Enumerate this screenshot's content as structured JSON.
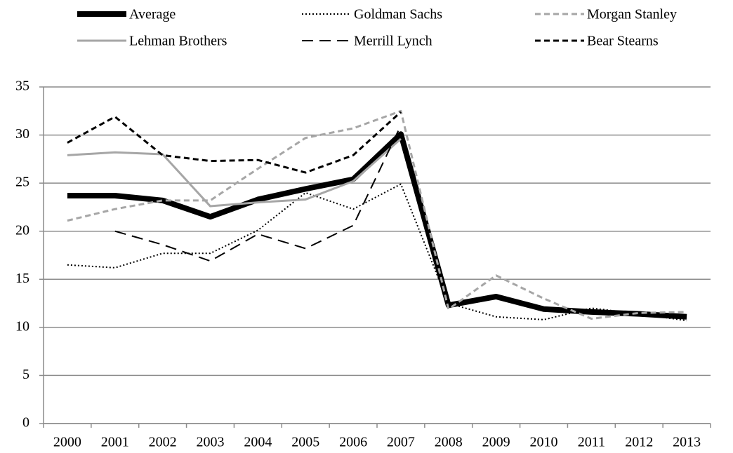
{
  "chart_data": {
    "type": "line",
    "categories": [
      "2000",
      "2001",
      "2002",
      "2003",
      "2004",
      "2005",
      "2006",
      "2007",
      "2008",
      "2009",
      "2010",
      "2011",
      "2012",
      "2013"
    ],
    "series": [
      {
        "name": "Average",
        "color": "#000000",
        "width": 8,
        "dash": "none",
        "values": [
          23.7,
          23.7,
          23.2,
          21.5,
          23.3,
          24.4,
          25.4,
          30.1,
          12.3,
          13.2,
          11.9,
          11.6,
          11.4,
          11.1
        ]
      },
      {
        "name": "Goldman Sachs",
        "color": "#000000",
        "width": 2,
        "dash": "2 3",
        "values": [
          16.5,
          16.2,
          17.7,
          17.7,
          20.1,
          24.0,
          22.3,
          24.9,
          12.5,
          11.1,
          10.8,
          12.0,
          11.4,
          10.7
        ]
      },
      {
        "name": "Morgan Stanley",
        "color": "#a6a6a6",
        "width": 3,
        "dash": "8 5",
        "values": [
          21.1,
          22.3,
          23.2,
          23.2,
          26.5,
          29.7,
          30.7,
          32.5,
          11.9,
          15.4,
          13.0,
          10.9,
          11.5,
          11.6
        ]
      },
      {
        "name": "Lehman Brothers",
        "color": "#a6a6a6",
        "width": 3,
        "dash": "none",
        "values": [
          27.9,
          28.2,
          28.0,
          22.6,
          23.0,
          23.3,
          25.2,
          29.6,
          null,
          null,
          null,
          null,
          null,
          null
        ]
      },
      {
        "name": "Merrill Lynch",
        "color": "#000000",
        "width": 2,
        "dash": "16 9",
        "values": [
          null,
          20.0,
          18.6,
          16.9,
          19.7,
          18.2,
          20.6,
          31.0,
          null,
          null,
          null,
          null,
          null,
          null
        ]
      },
      {
        "name": "Bear Stearns",
        "color": "#000000",
        "width": 3,
        "dash": "8 5",
        "values": [
          29.2,
          31.9,
          27.9,
          27.3,
          27.4,
          26.1,
          27.9,
          32.4,
          null,
          null,
          null,
          null,
          null,
          null
        ]
      }
    ],
    "ylim": [
      0,
      35
    ],
    "yticks": [
      0,
      5,
      10,
      15,
      20,
      25,
      30,
      35
    ],
    "grid": true,
    "legend": "top"
  }
}
